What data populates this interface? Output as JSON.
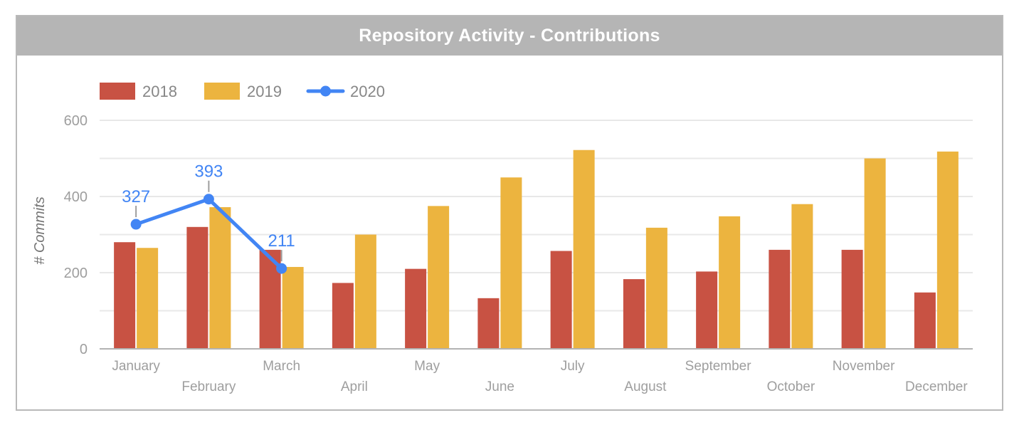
{
  "header": {
    "title": "Repository Activity - Contributions",
    "background_color": "#b5b5b5",
    "title_color": "#ffffff"
  },
  "chart_data": {
    "type": "bar",
    "title": "Repository Activity - Contributions",
    "categories": [
      "January",
      "February",
      "March",
      "April",
      "May",
      "June",
      "July",
      "August",
      "September",
      "October",
      "November",
      "December"
    ],
    "series": [
      {
        "name": "2018",
        "type": "bar",
        "color": "#c85243",
        "values": [
          280,
          320,
          260,
          173,
          210,
          133,
          257,
          183,
          203,
          260,
          260,
          148
        ]
      },
      {
        "name": "2019",
        "type": "bar",
        "color": "#ecb43f",
        "values": [
          265,
          372,
          215,
          300,
          375,
          450,
          522,
          318,
          348,
          380,
          500,
          518
        ]
      },
      {
        "name": "2020",
        "type": "line",
        "color": "#4285f4",
        "values": [
          327,
          393,
          211,
          null,
          null,
          null,
          null,
          null,
          null,
          null,
          null,
          null
        ],
        "show_point_labels": true
      }
    ],
    "xlabel": "",
    "ylabel": "# Commits",
    "ylim": [
      0,
      600
    ],
    "ytick_values": [
      0,
      200,
      400,
      600
    ],
    "grid_values": [
      0,
      100,
      200,
      300,
      400,
      500,
      600
    ],
    "grid": true,
    "legend_position": "top-left",
    "x_labels_staggered": true,
    "axis_label_color": "#9e9e9e",
    "data_label_color": "#4285f4"
  }
}
